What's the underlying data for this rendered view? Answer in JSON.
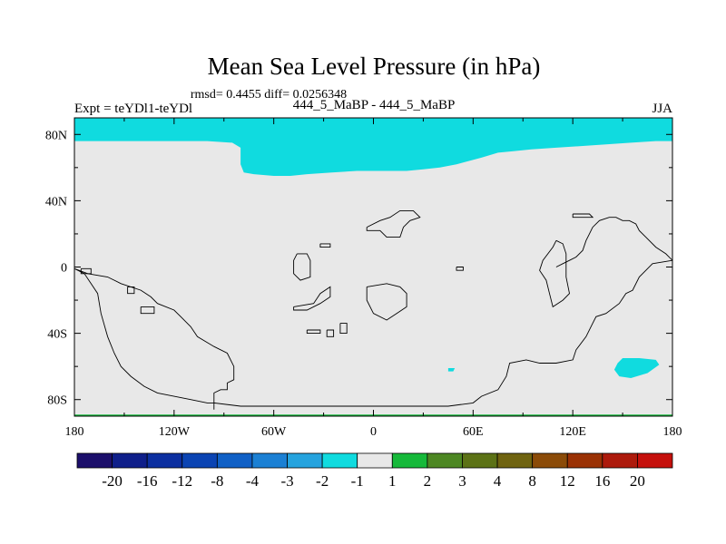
{
  "chart_data": {
    "type": "heatmap",
    "title": "Mean Sea Level Pressure (in hPa)",
    "subtitle": "rmsd= 0.4455 diff= 0.0256348",
    "left_label": "Expt = teYDl1-teYDl",
    "center_label": "444_5_MaBP - 444_5_MaBP",
    "right_label": "JJA",
    "xlim": [
      -180,
      180
    ],
    "ylim": [
      -90,
      90
    ],
    "x_ticks": [
      {
        "value": -180,
        "label": "180"
      },
      {
        "value": -120,
        "label": "120W"
      },
      {
        "value": -60,
        "label": "60W"
      },
      {
        "value": 0,
        "label": "0"
      },
      {
        "value": 60,
        "label": "60E"
      },
      {
        "value": 120,
        "label": "120E"
      },
      {
        "value": 180,
        "label": "180"
      }
    ],
    "y_ticks": [
      {
        "value": 80,
        "label": "80N"
      },
      {
        "value": 40,
        "label": "40N"
      },
      {
        "value": 0,
        "label": "0"
      },
      {
        "value": -40,
        "label": "40S"
      },
      {
        "value": -80,
        "label": "80S"
      }
    ],
    "background_value_range": [
      -1,
      1
    ],
    "regions": [
      {
        "name": "arctic-negative",
        "range": [
          -2,
          -1
        ],
        "points": [
          [
            -180,
            90
          ],
          [
            180,
            90
          ],
          [
            180,
            76
          ],
          [
            170,
            76
          ],
          [
            155,
            75
          ],
          [
            140,
            74
          ],
          [
            125,
            73
          ],
          [
            110,
            72
          ],
          [
            95,
            71
          ],
          [
            85,
            70
          ],
          [
            75,
            69
          ],
          [
            65,
            66
          ],
          [
            50,
            62
          ],
          [
            40,
            60
          ],
          [
            30,
            59
          ],
          [
            20,
            58
          ],
          [
            5,
            58
          ],
          [
            -10,
            58
          ],
          [
            -25,
            57
          ],
          [
            -40,
            56
          ],
          [
            -50,
            55
          ],
          [
            -60,
            55
          ],
          [
            -72,
            56
          ],
          [
            -78,
            57
          ],
          [
            -80,
            62
          ],
          [
            -80,
            72
          ],
          [
            -85,
            75
          ],
          [
            -100,
            76
          ],
          [
            -115,
            76
          ],
          [
            -140,
            76
          ],
          [
            -160,
            76
          ],
          [
            -180,
            76
          ]
        ]
      },
      {
        "name": "south-pacific-negative",
        "range": [
          -2,
          -1
        ],
        "points": [
          [
            147,
            -58
          ],
          [
            150,
            -55
          ],
          [
            160,
            -55
          ],
          [
            170,
            -56
          ],
          [
            172,
            -59
          ],
          [
            165,
            -64
          ],
          [
            155,
            -67
          ],
          [
            148,
            -66
          ],
          [
            145,
            -62
          ]
        ]
      },
      {
        "name": "indian-ocean-negative",
        "range": [
          -2,
          -1
        ],
        "points": [
          [
            45,
            -61
          ],
          [
            49,
            -61
          ],
          [
            48,
            -63
          ],
          [
            45,
            -63
          ]
        ]
      },
      {
        "name": "south-pole-positive",
        "range": [
          1,
          2
        ],
        "points": [
          [
            -180,
            -89
          ],
          [
            180,
            -89
          ],
          [
            180,
            -90
          ],
          [
            -180,
            -90
          ]
        ]
      }
    ],
    "coastlines": [
      [
        [
          -180,
          -1
        ],
        [
          -174,
          -4
        ],
        [
          -170,
          -10
        ],
        [
          -166,
          -16
        ],
        [
          -164,
          -28
        ],
        [
          -160,
          -42
        ],
        [
          -156,
          -52
        ],
        [
          -152,
          -60
        ],
        [
          -146,
          -66
        ],
        [
          -138,
          -72
        ],
        [
          -130,
          -76
        ],
        [
          -120,
          -78
        ],
        [
          -110,
          -80
        ],
        [
          -100,
          -82
        ],
        [
          -96,
          -82
        ],
        [
          -96,
          -76
        ],
        [
          -92,
          -74
        ],
        [
          -88,
          -74
        ],
        [
          -88,
          -70
        ],
        [
          -84,
          -68
        ],
        [
          -84,
          -60
        ],
        [
          -88,
          -52
        ],
        [
          -96,
          -48
        ],
        [
          -106,
          -42
        ],
        [
          -110,
          -36
        ],
        [
          -116,
          -30
        ],
        [
          -120,
          -26
        ],
        [
          -130,
          -22
        ],
        [
          -134,
          -18
        ],
        [
          -140,
          -14
        ],
        [
          -152,
          -10
        ],
        [
          -160,
          -6
        ],
        [
          -172,
          -4
        ],
        [
          -180,
          -1
        ]
      ],
      [
        [
          -176,
          -1
        ],
        [
          -170,
          -1
        ],
        [
          -170,
          -4
        ],
        [
          -176,
          -4
        ],
        [
          -176,
          -1
        ]
      ],
      [
        [
          -148,
          -12
        ],
        [
          -144,
          -12
        ],
        [
          -144,
          -16
        ],
        [
          -148,
          -16
        ],
        [
          -148,
          -12
        ]
      ],
      [
        [
          -140,
          -24
        ],
        [
          -132,
          -24
        ],
        [
          -132,
          -28
        ],
        [
          -140,
          -28
        ],
        [
          -140,
          -24
        ]
      ],
      [
        [
          -96,
          -86
        ],
        [
          -96,
          -82
        ],
        [
          -80,
          -84
        ],
        [
          -40,
          -84
        ],
        [
          0,
          -84
        ],
        [
          30,
          -84
        ],
        [
          45,
          -84
        ],
        [
          60,
          -82
        ],
        [
          65,
          -78
        ],
        [
          75,
          -74
        ],
        [
          80,
          -66
        ],
        [
          82,
          -58
        ],
        [
          92,
          -56
        ],
        [
          100,
          -58
        ],
        [
          110,
          -58
        ],
        [
          120,
          -56
        ],
        [
          122,
          -50
        ],
        [
          128,
          -42
        ],
        [
          132,
          -34
        ],
        [
          134,
          -30
        ],
        [
          140,
          -28
        ],
        [
          148,
          -22
        ],
        [
          152,
          -16
        ],
        [
          156,
          -14
        ],
        [
          160,
          -6
        ],
        [
          164,
          -2
        ],
        [
          168,
          2
        ],
        [
          180,
          4
        ],
        [
          176,
          8
        ],
        [
          170,
          12
        ],
        [
          164,
          18
        ],
        [
          160,
          22
        ],
        [
          158,
          26
        ],
        [
          154,
          28
        ],
        [
          150,
          28
        ],
        [
          146,
          30
        ],
        [
          142,
          30
        ],
        [
          136,
          28
        ],
        [
          132,
          24
        ],
        [
          130,
          20
        ],
        [
          128,
          16
        ],
        [
          126,
          10
        ],
        [
          122,
          6
        ],
        [
          118,
          4
        ],
        [
          114,
          2
        ],
        [
          110,
          0
        ]
      ],
      [
        [
          -46,
          8
        ],
        [
          -40,
          8
        ],
        [
          -38,
          4
        ],
        [
          -38,
          -6
        ],
        [
          -44,
          -8
        ],
        [
          -48,
          -4
        ],
        [
          -48,
          4
        ],
        [
          -46,
          8
        ]
      ],
      [
        [
          -32,
          14
        ],
        [
          -26,
          14
        ],
        [
          -26,
          12
        ],
        [
          -32,
          12
        ],
        [
          -32,
          14
        ]
      ],
      [
        [
          -48,
          -24
        ],
        [
          -36,
          -22
        ],
        [
          -32,
          -16
        ],
        [
          -26,
          -12
        ],
        [
          -26,
          -18
        ],
        [
          -32,
          -22
        ],
        [
          -40,
          -26
        ],
        [
          -48,
          -26
        ],
        [
          -48,
          -24
        ]
      ],
      [
        [
          -40,
          -38
        ],
        [
          -32,
          -38
        ],
        [
          -32,
          -40
        ],
        [
          -40,
          -40
        ],
        [
          -40,
          -38
        ]
      ],
      [
        [
          -28,
          -38
        ],
        [
          -24,
          -38
        ],
        [
          -24,
          -42
        ],
        [
          -28,
          -42
        ],
        [
          -28,
          -38
        ]
      ],
      [
        [
          -20,
          -34
        ],
        [
          -16,
          -34
        ],
        [
          -16,
          -40
        ],
        [
          -20,
          -40
        ],
        [
          -20,
          -34
        ]
      ],
      [
        [
          -4,
          -12
        ],
        [
          8,
          -10
        ],
        [
          16,
          -12
        ],
        [
          20,
          -16
        ],
        [
          20,
          -24
        ],
        [
          14,
          -28
        ],
        [
          8,
          -32
        ],
        [
          0,
          -28
        ],
        [
          -4,
          -20
        ],
        [
          -4,
          -12
        ]
      ],
      [
        [
          -4,
          24
        ],
        [
          4,
          28
        ],
        [
          10,
          30
        ],
        [
          16,
          34
        ],
        [
          24,
          34
        ],
        [
          28,
          30
        ],
        [
          22,
          28
        ],
        [
          18,
          24
        ],
        [
          16,
          18
        ],
        [
          8,
          18
        ],
        [
          4,
          22
        ],
        [
          -4,
          22
        ],
        [
          -4,
          24
        ]
      ],
      [
        [
          50,
          0
        ],
        [
          54,
          0
        ],
        [
          54,
          -2
        ],
        [
          50,
          -2
        ],
        [
          50,
          0
        ]
      ],
      [
        [
          120,
          32
        ],
        [
          130,
          32
        ],
        [
          132,
          30
        ],
        [
          120,
          30
        ],
        [
          120,
          32
        ]
      ],
      [
        [
          110,
          16
        ],
        [
          114,
          14
        ],
        [
          116,
          8
        ],
        [
          116,
          -6
        ],
        [
          118,
          -16
        ],
        [
          114,
          -20
        ],
        [
          108,
          -24
        ],
        [
          106,
          -16
        ],
        [
          104,
          -8
        ],
        [
          100,
          -2
        ],
        [
          102,
          4
        ],
        [
          108,
          12
        ],
        [
          110,
          16
        ]
      ]
    ],
    "colorbar": {
      "colors": [
        "#1c0f6b",
        "#0f1f8a",
        "#0c2fa0",
        "#0b44b3",
        "#1060c6",
        "#1b80d4",
        "#25a3de",
        "#10dbdf",
        "#e8e8e8",
        "#16b93a",
        "#4d8723",
        "#5c7216",
        "#6f6310",
        "#8b4b08",
        "#9a3104",
        "#ad1a0c",
        "#c5100c"
      ],
      "labels": [
        "-20",
        "-16",
        "-12",
        "-8",
        "-4",
        "-3",
        "-2",
        "-1",
        "1",
        "2",
        "3",
        "4",
        "8",
        "12",
        "16",
        "20"
      ]
    },
    "colors": {
      "negative_fill": "#10dbdf",
      "background_fill": "#e8e8e8",
      "positive_fill": "#16b93a"
    },
    "grid": false
  }
}
